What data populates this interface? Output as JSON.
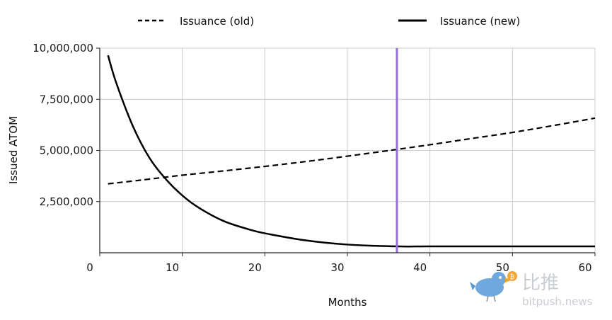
{
  "chart_data": {
    "type": "line",
    "title": "",
    "xlabel": "Months",
    "ylabel": "Issued ATOM",
    "xlim": [
      0,
      60
    ],
    "ylim": [
      0,
      10000000
    ],
    "x_ticks": [
      "0",
      "10",
      "20",
      "30",
      "40",
      "50",
      "60"
    ],
    "y_ticks": [
      "2,500,000",
      "5,000,000",
      "7,500,000",
      "10,000,000"
    ],
    "grid": true,
    "legend_position": "top",
    "series": [
      {
        "name": "Issuance (old)",
        "style": "dashed",
        "color": "#000000",
        "x": [
          1,
          5,
          10,
          15,
          20,
          25,
          30,
          36,
          40,
          45,
          50,
          55,
          60
        ],
        "y": [
          3370000,
          3550000,
          3790000,
          4000000,
          4220000,
          4460000,
          4720000,
          5050000,
          5280000,
          5580000,
          5880000,
          6220000,
          6580000
        ]
      },
      {
        "name": "Issuance (new)",
        "style": "solid",
        "color": "#000000",
        "x": [
          1,
          2,
          4,
          6,
          8,
          10,
          12,
          15,
          18,
          20,
          25,
          30,
          36,
          40,
          50,
          60
        ],
        "y": [
          9650000,
          8300000,
          6200000,
          4650000,
          3600000,
          2800000,
          2200000,
          1550000,
          1150000,
          950000,
          600000,
          400000,
          310000,
          310000,
          310000,
          310000
        ]
      }
    ],
    "annotations": [
      {
        "type": "vertical-line",
        "x": 36,
        "color": "#9370db"
      }
    ]
  },
  "watermark": {
    "cn_text": "比推",
    "en_text": "bitpush.news"
  },
  "colors": {
    "marker_line": "#9370db",
    "grid": "#cccccc",
    "watermark": "#c9cdd2",
    "bird_body": "#6fa8dc",
    "coin": "#f7a43a"
  }
}
